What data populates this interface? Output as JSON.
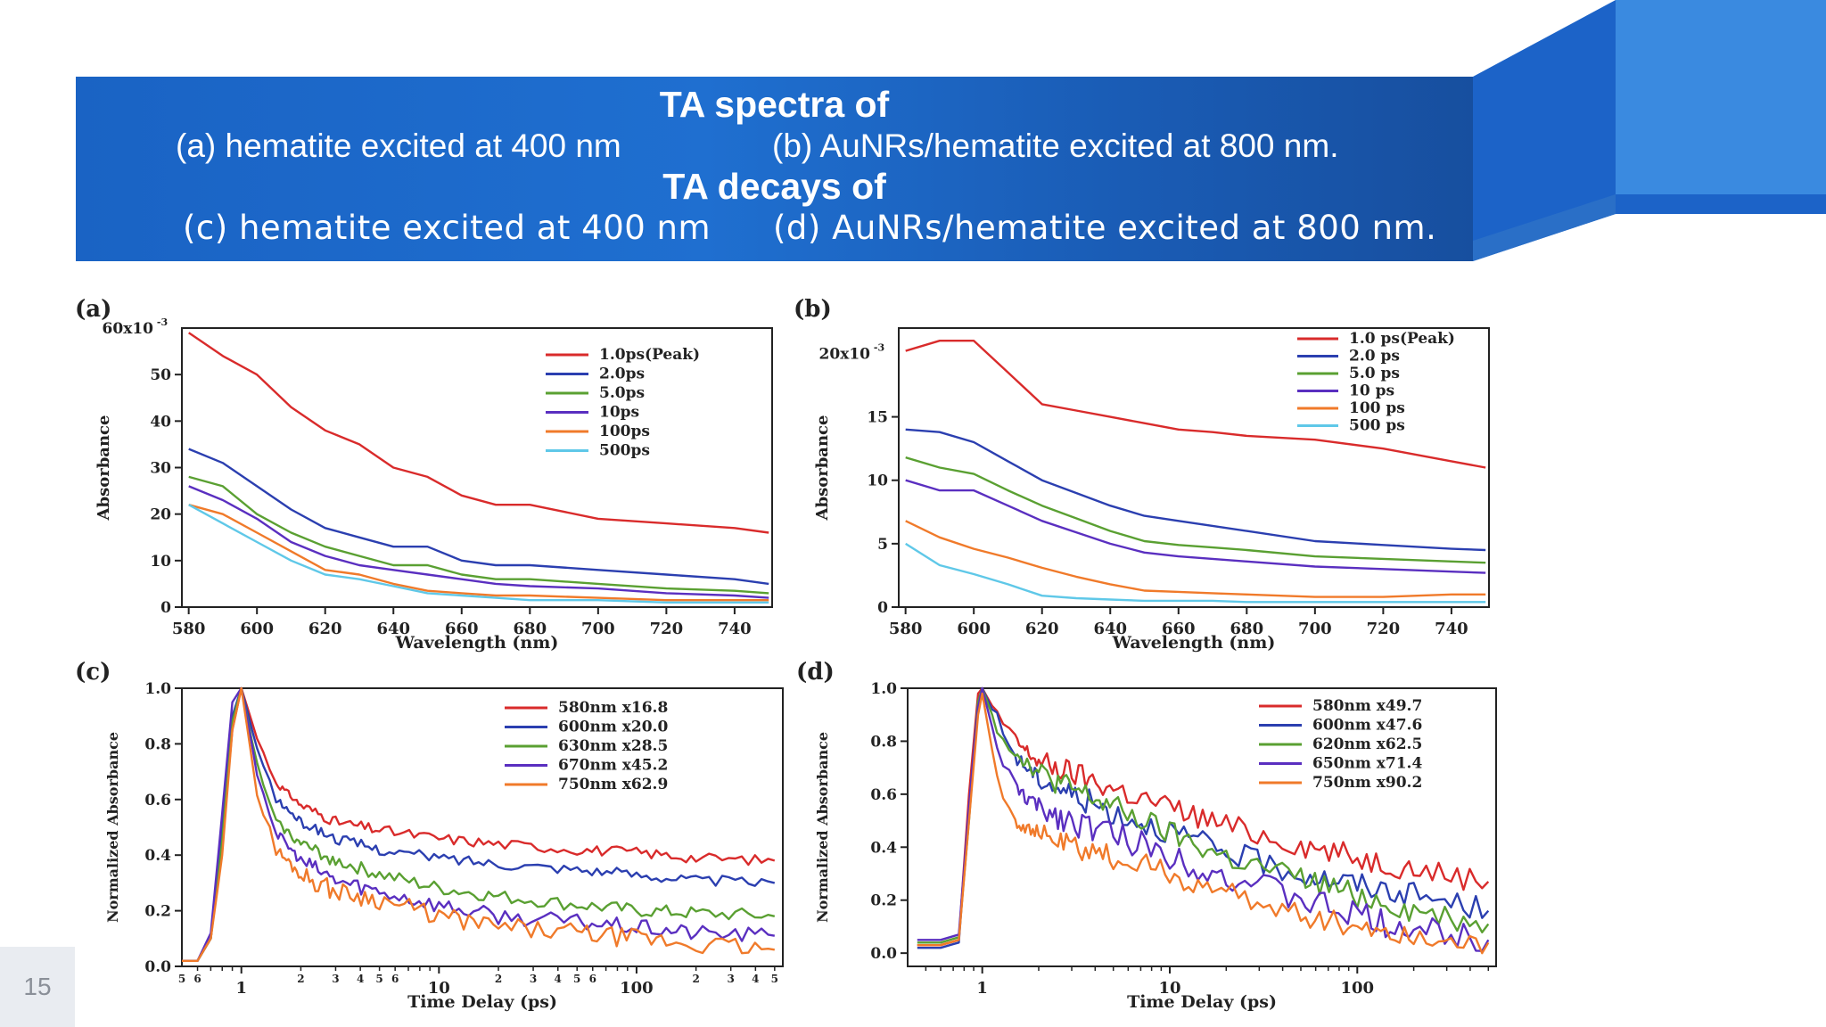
{
  "slide": {
    "title_spectra": "TA spectra of",
    "line_a": "(a) hematite excited at 400 nm",
    "line_b": "(b) AuNRs/hematite excited at 800 nm.",
    "title_decays": "TA decays of",
    "line_c": "(c) hematite excited at 400 nm",
    "line_d": "(d) AuNRs/hematite excited at 800 nm.",
    "page_number": "15"
  },
  "chart_data": [
    {
      "panel": "(a)",
      "type": "line",
      "xlabel": "Wavelength (nm)",
      "ylabel": "Absorbance",
      "y_top_label": "60x10",
      "y_top_exp": "-3",
      "xlim": [
        578,
        751
      ],
      "ylim": [
        0,
        60
      ],
      "xticks": [
        580,
        600,
        620,
        640,
        660,
        680,
        700,
        720,
        740
      ],
      "yticks": [
        0,
        10,
        20,
        30,
        40,
        50
      ],
      "x": [
        580,
        590,
        600,
        610,
        620,
        630,
        640,
        650,
        660,
        670,
        680,
        700,
        720,
        740,
        750
      ],
      "series": [
        {
          "name": "1.0ps(Peak)",
          "color": "#d92b2b",
          "values": [
            59,
            54,
            50,
            43,
            38,
            35,
            30,
            28,
            24,
            22,
            22,
            19,
            18,
            17,
            16
          ]
        },
        {
          "name": "2.0ps",
          "color": "#2b3fb0",
          "values": [
            34,
            31,
            26,
            21,
            17,
            15,
            13,
            13,
            10,
            9,
            9,
            8,
            7,
            6,
            5
          ]
        },
        {
          "name": "5.0ps",
          "color": "#5aa032",
          "values": [
            28,
            26,
            20,
            16,
            13,
            11,
            9,
            9,
            7,
            6,
            6,
            5,
            4,
            3.5,
            3
          ]
        },
        {
          "name": "10ps",
          "color": "#5a2fc0",
          "values": [
            26,
            23,
            19,
            14,
            11,
            9,
            8,
            7,
            6,
            5,
            4.5,
            4,
            3,
            2.5,
            2
          ]
        },
        {
          "name": "100ps",
          "color": "#f07a2a",
          "values": [
            22,
            20,
            16,
            12,
            8,
            7,
            5,
            3.5,
            3,
            2.5,
            2.5,
            2,
            1.5,
            1.5,
            1.5
          ]
        },
        {
          "name": "500ps",
          "color": "#5fc8e8",
          "values": [
            22,
            18,
            14,
            10,
            7,
            6,
            4.5,
            3,
            2.5,
            2,
            1.5,
            1.5,
            1,
            1,
            1
          ]
        }
      ]
    },
    {
      "panel": "(b)",
      "type": "line",
      "xlabel": "Wavelength (nm)",
      "ylabel": "Absorbance",
      "y_top_label": "20x10",
      "y_top_exp": "-3",
      "xlim": [
        578,
        751
      ],
      "ylim": [
        0,
        22
      ],
      "xticks": [
        580,
        600,
        620,
        640,
        660,
        680,
        700,
        720,
        740
      ],
      "yticks": [
        0,
        5,
        10,
        15
      ],
      "x": [
        580,
        590,
        600,
        610,
        620,
        630,
        640,
        650,
        660,
        670,
        680,
        700,
        720,
        740,
        750
      ],
      "series": [
        {
          "name": "1.0 ps(Peak)",
          "color": "#d92b2b",
          "values": [
            20.2,
            21,
            21,
            18.5,
            16,
            15.5,
            15,
            14.5,
            14,
            13.8,
            13.5,
            13.2,
            12.5,
            11.5,
            11
          ]
        },
        {
          "name": "2.0 ps",
          "color": "#2b3fb0",
          "values": [
            14,
            13.8,
            13,
            11.5,
            10,
            9,
            8,
            7.2,
            6.8,
            6.4,
            6,
            5.2,
            4.9,
            4.6,
            4.5
          ]
        },
        {
          "name": "5.0 ps",
          "color": "#5aa032",
          "values": [
            11.8,
            11,
            10.5,
            9.2,
            8,
            7,
            6,
            5.2,
            4.9,
            4.7,
            4.5,
            4,
            3.8,
            3.6,
            3.5
          ]
        },
        {
          "name": "10 ps",
          "color": "#5a2fc0",
          "values": [
            10,
            9.2,
            9.2,
            8,
            6.8,
            5.9,
            5,
            4.3,
            4,
            3.8,
            3.6,
            3.2,
            3,
            2.8,
            2.7
          ]
        },
        {
          "name": "100 ps",
          "color": "#f07a2a",
          "values": [
            6.8,
            5.5,
            4.6,
            3.9,
            3.1,
            2.4,
            1.8,
            1.3,
            1.2,
            1.1,
            1,
            0.8,
            0.8,
            1,
            1
          ]
        },
        {
          "name": "500 ps",
          "color": "#5fc8e8",
          "values": [
            5,
            3.3,
            2.6,
            1.8,
            0.9,
            0.7,
            0.6,
            0.5,
            0.5,
            0.5,
            0.4,
            0.4,
            0.4,
            0.4,
            0.4
          ]
        }
      ]
    },
    {
      "panel": "(c)",
      "type": "line",
      "xlabel": "Time Delay (ps)",
      "ylabel": "Normalized Absorbance",
      "x_scale": "log",
      "xlim": [
        0.5,
        550
      ],
      "ylim": [
        0,
        1.0
      ],
      "xticks": [
        1,
        10,
        100
      ],
      "yticks": [
        0.0,
        0.2,
        0.4,
        0.6,
        0.8,
        1.0
      ],
      "x_minor_labels": [
        {
          "v": 0.5,
          "t": "5"
        },
        {
          "v": 0.6,
          "t": "6"
        },
        {
          "v": 2,
          "t": "2"
        },
        {
          "v": 3,
          "t": "3"
        },
        {
          "v": 4,
          "t": "4"
        },
        {
          "v": 5,
          "t": "5"
        },
        {
          "v": 6,
          "t": "6"
        },
        {
          "v": 20,
          "t": "2"
        },
        {
          "v": 30,
          "t": "3"
        },
        {
          "v": 40,
          "t": "4"
        },
        {
          "v": 50,
          "t": "5"
        },
        {
          "v": 60,
          "t": "6"
        },
        {
          "v": 200,
          "t": "2"
        },
        {
          "v": 300,
          "t": "3"
        },
        {
          "v": 400,
          "t": "4"
        },
        {
          "v": 500,
          "t": "5"
        }
      ],
      "series": [
        {
          "name": "580nm x16.8",
          "color": "#d92b2b",
          "x": [
            0.5,
            0.6,
            0.7,
            0.8,
            0.9,
            1.0,
            1.2,
            1.5,
            2,
            3,
            5,
            10,
            20,
            50,
            100,
            200,
            500
          ],
          "values": [
            0.02,
            0.02,
            0.1,
            0.45,
            0.85,
            1.0,
            0.82,
            0.66,
            0.58,
            0.52,
            0.49,
            0.46,
            0.44,
            0.42,
            0.41,
            0.39,
            0.38
          ],
          "noise": 0.012
        },
        {
          "name": "600nm x20.0",
          "color": "#2b3fb0",
          "x": [
            0.5,
            0.6,
            0.7,
            0.8,
            0.9,
            1.0,
            1.2,
            1.5,
            2,
            3,
            5,
            10,
            20,
            50,
            100,
            200,
            500
          ],
          "values": [
            0.02,
            0.02,
            0.1,
            0.5,
            0.9,
            1.0,
            0.78,
            0.6,
            0.52,
            0.46,
            0.42,
            0.39,
            0.37,
            0.35,
            0.33,
            0.31,
            0.3
          ],
          "noise": 0.012
        },
        {
          "name": "630nm x28.5",
          "color": "#5aa032",
          "x": [
            0.5,
            0.6,
            0.7,
            0.8,
            0.9,
            1.0,
            1.2,
            1.5,
            2,
            3,
            5,
            10,
            20,
            50,
            100,
            200,
            500
          ],
          "values": [
            0.02,
            0.02,
            0.1,
            0.45,
            0.88,
            1.0,
            0.72,
            0.52,
            0.44,
            0.38,
            0.33,
            0.28,
            0.25,
            0.22,
            0.2,
            0.19,
            0.18
          ],
          "noise": 0.015
        },
        {
          "name": "670nm x45.2",
          "color": "#5a2fc0",
          "x": [
            0.5,
            0.6,
            0.7,
            0.8,
            0.9,
            1.0,
            1.2,
            1.5,
            2,
            3,
            5,
            10,
            20,
            50,
            100,
            200,
            500
          ],
          "values": [
            0.02,
            0.02,
            0.12,
            0.55,
            0.95,
            1.0,
            0.7,
            0.48,
            0.38,
            0.31,
            0.27,
            0.22,
            0.18,
            0.16,
            0.14,
            0.12,
            0.11
          ],
          "noise": 0.018
        },
        {
          "name": "750nm x62.9",
          "color": "#f07a2a",
          "x": [
            0.5,
            0.6,
            0.7,
            0.8,
            0.9,
            1.0,
            1.2,
            1.5,
            2,
            3,
            5,
            10,
            20,
            50,
            100,
            200,
            500
          ],
          "values": [
            0.02,
            0.02,
            0.1,
            0.4,
            0.85,
            1.0,
            0.62,
            0.42,
            0.33,
            0.27,
            0.24,
            0.18,
            0.14,
            0.12,
            0.1,
            0.08,
            0.06
          ],
          "noise": 0.022
        }
      ]
    },
    {
      "panel": "(d)",
      "type": "line",
      "xlabel": "Time Delay (ps)",
      "ylabel": "Normalized Absorbance",
      "x_scale": "log",
      "xlim": [
        0.4,
        550
      ],
      "ylim": [
        -0.05,
        1.0
      ],
      "xticks": [
        1,
        10,
        100
      ],
      "yticks": [
        0.0,
        0.2,
        0.4,
        0.6,
        0.8,
        1.0
      ],
      "x_minor_labels": [],
      "series": [
        {
          "name": "580nm x49.7",
          "color": "#d92b2b",
          "x": [
            0.45,
            0.6,
            0.75,
            0.85,
            0.95,
            1.0,
            1.2,
            1.5,
            2,
            3,
            5,
            10,
            20,
            50,
            100,
            200,
            500
          ],
          "values": [
            0.03,
            0.03,
            0.05,
            0.6,
            0.98,
            1.0,
            0.9,
            0.8,
            0.72,
            0.68,
            0.62,
            0.55,
            0.48,
            0.41,
            0.36,
            0.32,
            0.27
          ],
          "noise": 0.03
        },
        {
          "name": "600nm x47.6",
          "color": "#2b3fb0",
          "x": [
            0.45,
            0.6,
            0.75,
            0.85,
            0.95,
            1.0,
            1.2,
            1.5,
            2,
            3,
            5,
            10,
            20,
            50,
            100,
            200,
            500
          ],
          "values": [
            0.02,
            0.02,
            0.04,
            0.55,
            0.95,
            1.0,
            0.88,
            0.74,
            0.66,
            0.6,
            0.53,
            0.46,
            0.38,
            0.3,
            0.26,
            0.22,
            0.16
          ],
          "noise": 0.03
        },
        {
          "name": "620nm x62.5",
          "color": "#5aa032",
          "x": [
            0.45,
            0.6,
            0.75,
            0.85,
            0.95,
            1.0,
            1.2,
            1.5,
            2,
            3,
            5,
            10,
            20,
            50,
            100,
            200,
            500
          ],
          "values": [
            0.04,
            0.04,
            0.06,
            0.5,
            0.95,
            1.0,
            0.85,
            0.76,
            0.68,
            0.62,
            0.55,
            0.45,
            0.36,
            0.28,
            0.22,
            0.16,
            0.11
          ],
          "noise": 0.03
        },
        {
          "name": "650nm x71.4",
          "color": "#5a2fc0",
          "x": [
            0.45,
            0.6,
            0.75,
            0.85,
            0.95,
            1.0,
            1.2,
            1.5,
            2,
            3,
            5,
            10,
            20,
            50,
            100,
            200,
            500
          ],
          "values": [
            0.05,
            0.05,
            0.07,
            0.55,
            0.93,
            1.0,
            0.78,
            0.62,
            0.55,
            0.5,
            0.45,
            0.37,
            0.29,
            0.2,
            0.14,
            0.09,
            0.05
          ],
          "noise": 0.035
        },
        {
          "name": "750nm x90.2",
          "color": "#f07a2a",
          "x": [
            0.45,
            0.6,
            0.75,
            0.85,
            0.95,
            1.0,
            1.2,
            1.5,
            2,
            3,
            5,
            10,
            20,
            50,
            100,
            200,
            500
          ],
          "values": [
            0.03,
            0.03,
            0.05,
            0.5,
            0.9,
            0.98,
            0.66,
            0.5,
            0.45,
            0.4,
            0.36,
            0.3,
            0.22,
            0.15,
            0.1,
            0.06,
            0.04
          ],
          "noise": 0.03
        }
      ]
    }
  ]
}
